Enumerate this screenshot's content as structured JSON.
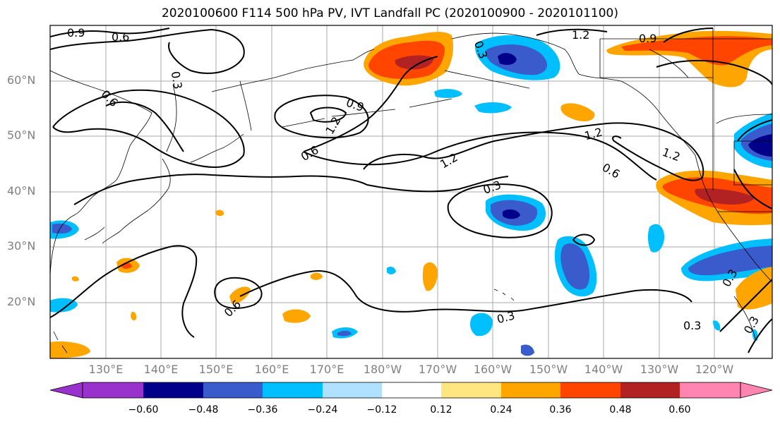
{
  "title": "2020100600 F114 500 hPa PV, IVT Landfall PC (2020100900 - 2020101100)",
  "lat_labels": [
    "60°N",
    "50°N",
    "40°N",
    "30°N",
    "20°N"
  ],
  "lon_labels": [
    "130°E",
    "140°E",
    "150°E",
    "160°E",
    "170°E",
    "180°W",
    "170°W",
    "160°W",
    "150°W",
    "140°W",
    "130°W",
    "120°W"
  ],
  "contour_labels": [
    "0.9",
    "0.6",
    "0.3",
    "0.6",
    "0.9",
    "1.2",
    "0.6",
    "1.2",
    "1.2",
    "1.2",
    "0.6",
    "0.9",
    "1.2",
    "0.3",
    "0.6",
    "0.3",
    "0.3",
    "0.3",
    "0.3",
    "0.3"
  ],
  "colorbar": {
    "ticks": [
      "−0.60",
      "−0.48",
      "−0.36",
      "−0.24",
      "−0.12",
      "0.12",
      "0.24",
      "0.36",
      "0.48",
      "0.60"
    ],
    "colors": [
      "#9932cc",
      "#00008b",
      "#3a5bcc",
      "#00bfff",
      "#b0e0ff",
      "#ffffff",
      "#ffe680",
      "#ffa500",
      "#ff4500",
      "#b22222",
      "#ff85b0"
    ]
  },
  "colors": {
    "pos_low": "#ffe680",
    "pos_mid": "#ffa500",
    "pos_high": "#ff4500",
    "pos_max": "#b22222",
    "neg_low": "#b0e0ff",
    "neg_mid": "#00bfff",
    "neg_high": "#3a5bcc",
    "neg_max": "#00008b",
    "axis_label": "#808080"
  }
}
